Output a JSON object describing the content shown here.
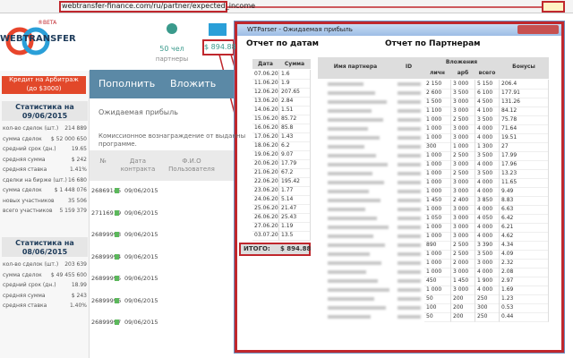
{
  "address_bar": {
    "url": "webtransfer-finance.com/ru/partner/expected_income"
  },
  "header": {
    "logo": "WEBTRANSFER",
    "beta": "®BETA",
    "partners_count": "50 чел",
    "partners_label": "партнеры",
    "balance": "$ 894.88"
  },
  "sidebar": {
    "credit_button": [
      "Кредит на Арбитраж",
      "(до $3000)"
    ],
    "stats": [
      {
        "title": [
          "Статистика на",
          "09/06/2015"
        ],
        "rows": [
          [
            "кол-во сделок (шт.)",
            "214 889"
          ],
          [
            "сумма сделок",
            "$ 52 000 650"
          ],
          [
            "средний срок (дн.)",
            "19.65"
          ],
          [
            "средняя сумма",
            "$ 242"
          ],
          [
            "средняя ставка",
            "1.41%"
          ],
          [
            "сделки на бирже (шт.)",
            "16 680"
          ],
          [
            "сумма сделок",
            "$ 1 448 076"
          ],
          [
            "новых участников",
            "35 506"
          ],
          [
            "всего участников",
            "5 159 379"
          ]
        ]
      },
      {
        "title": [
          "Статистика на",
          "08/06/2015"
        ],
        "rows": [
          [
            "кол-во сделок (шт.)",
            "203 639"
          ],
          [
            "сумма сделок",
            "$ 49 455 600"
          ],
          [
            "средний срок (дн.)",
            "18.99"
          ],
          [
            "средняя сумма",
            "$ 243"
          ],
          [
            "средняя ставка",
            "1.40%"
          ]
        ]
      }
    ]
  },
  "main": {
    "buttons": [
      "Пополнить",
      "Вложить"
    ],
    "section_title": "Ожидаемая прибыль",
    "description": [
      "Комиссионное вознаграждение от выданны",
      "программе."
    ],
    "table": {
      "headers": [
        "№",
        "Дата контракта",
        "Ф.И.О Пользователя"
      ],
      "rows": [
        [
          "26869145",
          "09/06/2015"
        ],
        [
          "27116919",
          "09/06/2015"
        ],
        [
          "26899993",
          "09/06/2015"
        ],
        [
          "26899994",
          "09/06/2015"
        ],
        [
          "26899995",
          "09/06/2015"
        ],
        [
          "26899996",
          "09/06/2015"
        ],
        [
          "26899997",
          "09/06/2015"
        ]
      ]
    }
  },
  "popup": {
    "title": "WTParser - Ожидаемая прибыль",
    "dates_report": {
      "title": "Отчет по датам",
      "headers": [
        "Дата",
        "Сумма"
      ],
      "rows": [
        [
          "07.06.2015",
          "1.6"
        ],
        [
          "11.06.2015",
          "1.9"
        ],
        [
          "12.06.2015",
          "207.65"
        ],
        [
          "13.06.2015",
          "2.84"
        ],
        [
          "14.06.2015",
          "1.51"
        ],
        [
          "15.06.2015",
          "85.72"
        ],
        [
          "16.06.2015",
          "85.8"
        ],
        [
          "17.06.2015",
          "1.43"
        ],
        [
          "18.06.2015",
          "6.2"
        ],
        [
          "19.06.2015",
          "9.07"
        ],
        [
          "20.06.2015",
          "17.79"
        ],
        [
          "21.06.2015",
          "67.2"
        ],
        [
          "22.06.2015",
          "195.42"
        ],
        [
          "23.06.2015",
          "1.77"
        ],
        [
          "24.06.2015",
          "5.14"
        ],
        [
          "25.06.2015",
          "21.47"
        ],
        [
          "26.06.2015",
          "25.43"
        ],
        [
          "27.06.2015",
          "1.19"
        ],
        [
          "03.07.2015",
          "13.5"
        ]
      ],
      "total_label": "ИТОГО:",
      "total": "$ 894.88"
    },
    "partners_report": {
      "title": "Отчет по Партнерам",
      "headers": {
        "name": "Имя партнера",
        "id": "ID",
        "investments": "Вложения",
        "sub": [
          "личн",
          "арб",
          "всего"
        ],
        "bonus": "Бонусы"
      },
      "rows": [
        [
          "2 150",
          "3 000",
          "5 150",
          "206.4"
        ],
        [
          "2 600",
          "3 500",
          "6 100",
          "177.91"
        ],
        [
          "1 500",
          "3 000",
          "4 500",
          "131.26"
        ],
        [
          "1 100",
          "3 000",
          "4 100",
          "84.12"
        ],
        [
          "1 000",
          "2 500",
          "3 500",
          "75.78"
        ],
        [
          "1 000",
          "3 000",
          "4 000",
          "71.64"
        ],
        [
          "1 000",
          "3 000",
          "4 000",
          "19.51"
        ],
        [
          "300",
          "1 000",
          "1 300",
          "27"
        ],
        [
          "1 000",
          "2 500",
          "3 500",
          "17.99"
        ],
        [
          "1 000",
          "3 000",
          "4 000",
          "17.96"
        ],
        [
          "1 000",
          "2 500",
          "3 500",
          "13.23"
        ],
        [
          "1 000",
          "3 000",
          "4 000",
          "11.65"
        ],
        [
          "1 000",
          "3 000",
          "4 000",
          "9.49"
        ],
        [
          "1 450",
          "2 400",
          "3 850",
          "8.83"
        ],
        [
          "1 000",
          "3 000",
          "4 000",
          "6.63"
        ],
        [
          "1 050",
          "3 000",
          "4 050",
          "6.42"
        ],
        [
          "1 000",
          "3 000",
          "4 000",
          "6.21"
        ],
        [
          "1 000",
          "3 000",
          "4 000",
          "4.62"
        ],
        [
          "890",
          "2 500",
          "3 390",
          "4.34"
        ],
        [
          "1 000",
          "2 500",
          "3 500",
          "4.09"
        ],
        [
          "1 000",
          "2 000",
          "3 000",
          "2.32"
        ],
        [
          "1 000",
          "3 000",
          "4 000",
          "2.08"
        ],
        [
          "450",
          "1 450",
          "1 900",
          "2.97"
        ],
        [
          "1 000",
          "3 000",
          "4 000",
          "1.69"
        ],
        [
          "50",
          "200",
          "250",
          "1.23"
        ],
        [
          "100",
          "200",
          "300",
          "0.53"
        ],
        [
          "50",
          "200",
          "250",
          "0.44"
        ]
      ]
    }
  }
}
